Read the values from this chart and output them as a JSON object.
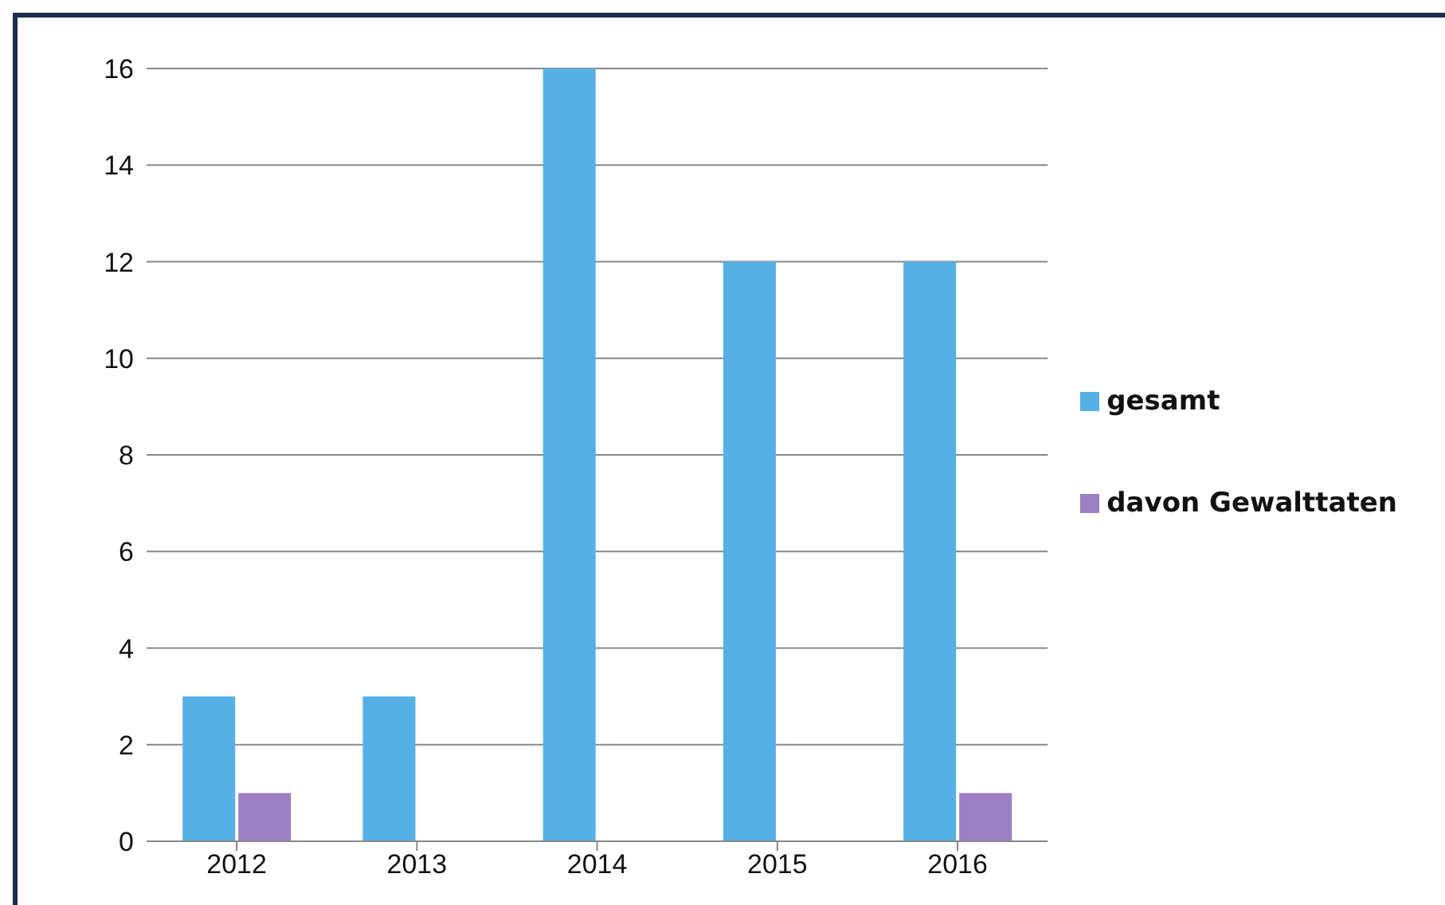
{
  "chart_data": {
    "type": "bar",
    "categories": [
      "2012",
      "2013",
      "2014",
      "2015",
      "2016"
    ],
    "series": [
      {
        "name": "gesamt",
        "color": "#56b0e6",
        "values": [
          3,
          3,
          16,
          12,
          12
        ]
      },
      {
        "name": "davon Gewalttaten",
        "color": "#9b80c4",
        "values": [
          1,
          0,
          0,
          0,
          1
        ]
      }
    ],
    "ylim": [
      0,
      16
    ],
    "yticks": [
      0,
      2,
      4,
      6,
      8,
      10,
      12,
      14,
      16
    ],
    "grid": "y",
    "legend": "right"
  }
}
